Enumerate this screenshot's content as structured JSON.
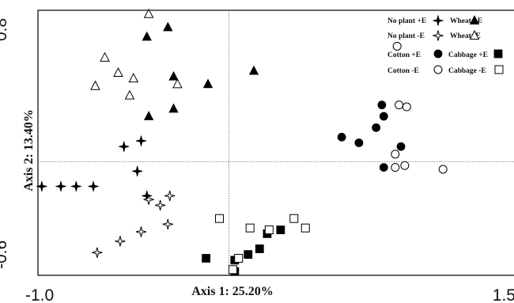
{
  "chart_data": {
    "type": "scatter",
    "xlabel": "Axis 1: 25.20%",
    "ylabel": "Axis 2: 13.40%",
    "xlim": [
      -1.0,
      1.5
    ],
    "ylim": [
      -0.6,
      0.8
    ],
    "x_ticks": [
      "-1.0",
      "1.5"
    ],
    "y_ticks": [
      "0.8",
      "-0.6"
    ],
    "grid": false,
    "reference_lines": {
      "x": 0.0,
      "y": 0.0
    },
    "legend_position": "top-right",
    "series": [
      {
        "name": "No plant +E",
        "marker": "star-filled",
        "color": "#000000",
        "points": [
          [
            -0.55,
            0.08
          ],
          [
            -0.46,
            0.11
          ],
          [
            -0.48,
            -0.05
          ],
          [
            -0.71,
            -0.13
          ],
          [
            -0.8,
            -0.13
          ],
          [
            -0.88,
            -0.13
          ],
          [
            -0.98,
            -0.13
          ],
          [
            -0.43,
            -0.18
          ]
        ]
      },
      {
        "name": "No plant  -E",
        "marker": "star-open",
        "color": "#000000",
        "points": [
          [
            -0.42,
            -0.2
          ],
          [
            -0.36,
            -0.23
          ],
          [
            -0.31,
            -0.18
          ],
          [
            -0.32,
            -0.33
          ],
          [
            -0.46,
            -0.37
          ],
          [
            -0.57,
            -0.42
          ],
          [
            -0.69,
            -0.48
          ]
        ]
      },
      {
        "name": "Wheat  +E",
        "marker": "triangle-filled",
        "color": "#000000",
        "points": [
          [
            -0.43,
            0.66
          ],
          [
            -0.32,
            0.71
          ],
          [
            -0.29,
            0.45
          ],
          [
            -0.11,
            0.41
          ],
          [
            0.13,
            0.48
          ],
          [
            -0.29,
            0.28
          ],
          [
            -0.42,
            0.24
          ]
        ]
      },
      {
        "name": "Wheat -E",
        "marker": "triangle-open",
        "color": "#000000",
        "points": [
          [
            -0.42,
            0.78
          ],
          [
            -0.65,
            0.55
          ],
          [
            -0.58,
            0.47
          ],
          [
            -0.5,
            0.44
          ],
          [
            -0.52,
            0.35
          ],
          [
            -0.7,
            0.4
          ],
          [
            -0.27,
            0.41
          ]
        ]
      },
      {
        "name": "Cotton +E",
        "marker": "circle-filled",
        "color": "#000000",
        "points": [
          [
            0.8,
            0.3
          ],
          [
            0.81,
            0.24
          ],
          [
            0.77,
            0.18
          ],
          [
            0.68,
            0.1
          ],
          [
            0.59,
            0.13
          ],
          [
            0.9,
            0.08
          ],
          [
            0.81,
            -0.03
          ]
        ]
      },
      {
        "name": "Cotton -E",
        "marker": "circle-open",
        "color": "#000000",
        "points": [
          [
            0.89,
            0.3
          ],
          [
            0.93,
            0.29
          ],
          [
            0.87,
            0.04
          ],
          [
            0.87,
            -0.03
          ],
          [
            0.92,
            -0.02
          ],
          [
            1.12,
            -0.04
          ],
          [
            0.88,
            0.61
          ]
        ]
      },
      {
        "name": "Cabbage +E",
        "marker": "square-filled",
        "color": "#000000",
        "points": [
          [
            -0.12,
            -0.51
          ],
          [
            0.03,
            -0.52
          ],
          [
            0.1,
            -0.49
          ],
          [
            0.16,
            -0.46
          ],
          [
            0.27,
            -0.36
          ],
          [
            0.2,
            -0.38
          ],
          [
            0.03,
            -0.58
          ]
        ]
      },
      {
        "name": "Cabbage -E",
        "marker": "square-open",
        "color": "#000000",
        "points": [
          [
            -0.05,
            -0.3
          ],
          [
            0.11,
            -0.35
          ],
          [
            0.21,
            -0.36
          ],
          [
            0.34,
            -0.3
          ],
          [
            0.4,
            -0.35
          ],
          [
            0.05,
            -0.51
          ],
          [
            0.02,
            -0.57
          ]
        ]
      }
    ]
  }
}
